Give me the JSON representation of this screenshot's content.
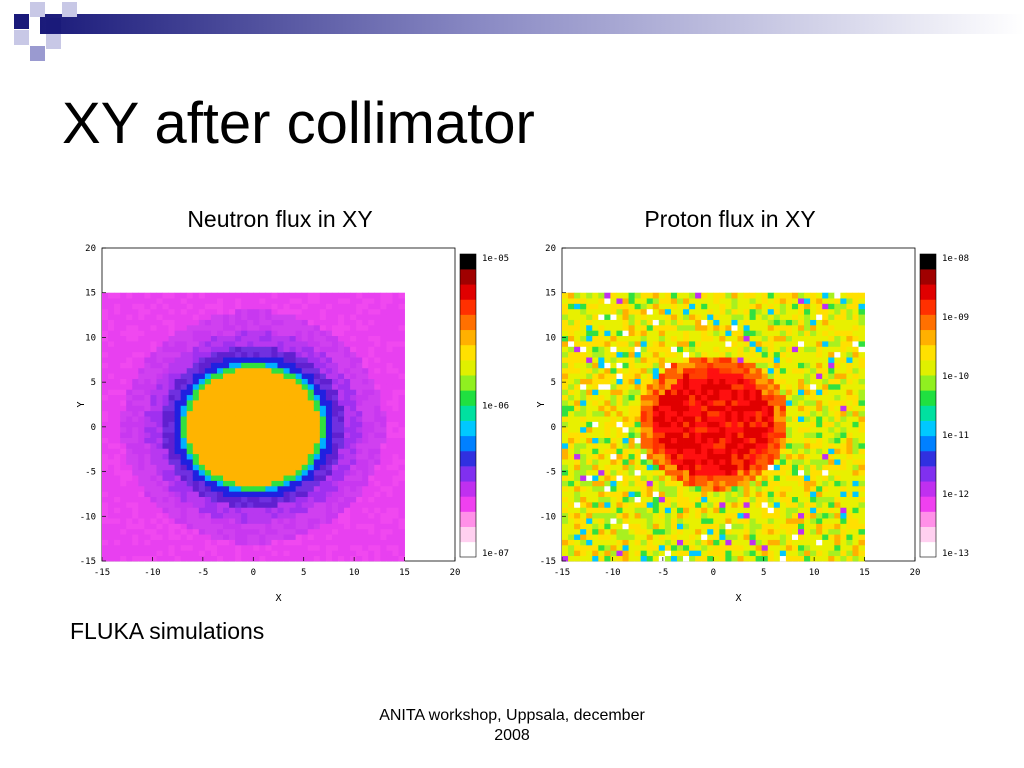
{
  "slide": {
    "title": "XY after collimator",
    "note": "FLUKA simulations",
    "footer_line1": "ANITA workshop, Uppsala, december",
    "footer_line2": "2008"
  },
  "theme": {
    "deco_navy": "#1a1a7a",
    "deco_lavender": "#9a9ad0"
  },
  "chart_data": [
    {
      "type": "heatmap",
      "title": "Neutron flux in XY",
      "xlabel": "X",
      "ylabel": "Y",
      "xlim": [
        -15,
        20
      ],
      "ylim": [
        -15,
        20
      ],
      "xticks": [
        "-15",
        "-10",
        "-5",
        "0",
        "5",
        "10",
        "15",
        "20"
      ],
      "yticks": [
        "-15",
        "-10",
        "-5",
        "0",
        "5",
        "10",
        "15",
        "20"
      ],
      "data_extent": {
        "x": [
          -15,
          15
        ],
        "y": [
          -15,
          15
        ]
      },
      "grid": false,
      "colorbar": {
        "position": "right",
        "scale": "log",
        "range": [
          1e-07,
          1e-05
        ],
        "tick_labels": [
          "1e-05",
          "1e-06",
          "1e-07"
        ]
      },
      "pattern": {
        "background_value": "magenta",
        "disk_center": [
          0,
          0
        ],
        "disk_radius": 6.5,
        "disk_value": "orange",
        "ring_width": 1.5,
        "ring_value": "blue"
      }
    },
    {
      "type": "heatmap",
      "title": "Proton flux in XY",
      "xlabel": "X",
      "ylabel": "Y",
      "xlim": [
        -15,
        20
      ],
      "ylim": [
        -15,
        20
      ],
      "xticks": [
        "-15",
        "-10",
        "-5",
        "0",
        "5",
        "10",
        "15",
        "20"
      ],
      "yticks": [
        "-15",
        "-10",
        "-5",
        "0",
        "5",
        "10",
        "15",
        "20"
      ],
      "data_extent": {
        "x": [
          -15,
          15
        ],
        "y": [
          -15,
          15
        ]
      },
      "grid": false,
      "colorbar": {
        "position": "right",
        "scale": "log",
        "range": [
          1e-13,
          1e-08
        ],
        "tick_labels": [
          "1e-08",
          "1e-09",
          "1e-10",
          "1e-11",
          "1e-12",
          "1e-13"
        ]
      },
      "pattern": {
        "background_value": "yellow-green noisy",
        "disk_center": [
          0,
          0.5
        ],
        "disk_radius": 6,
        "disk_value": "red"
      }
    }
  ]
}
